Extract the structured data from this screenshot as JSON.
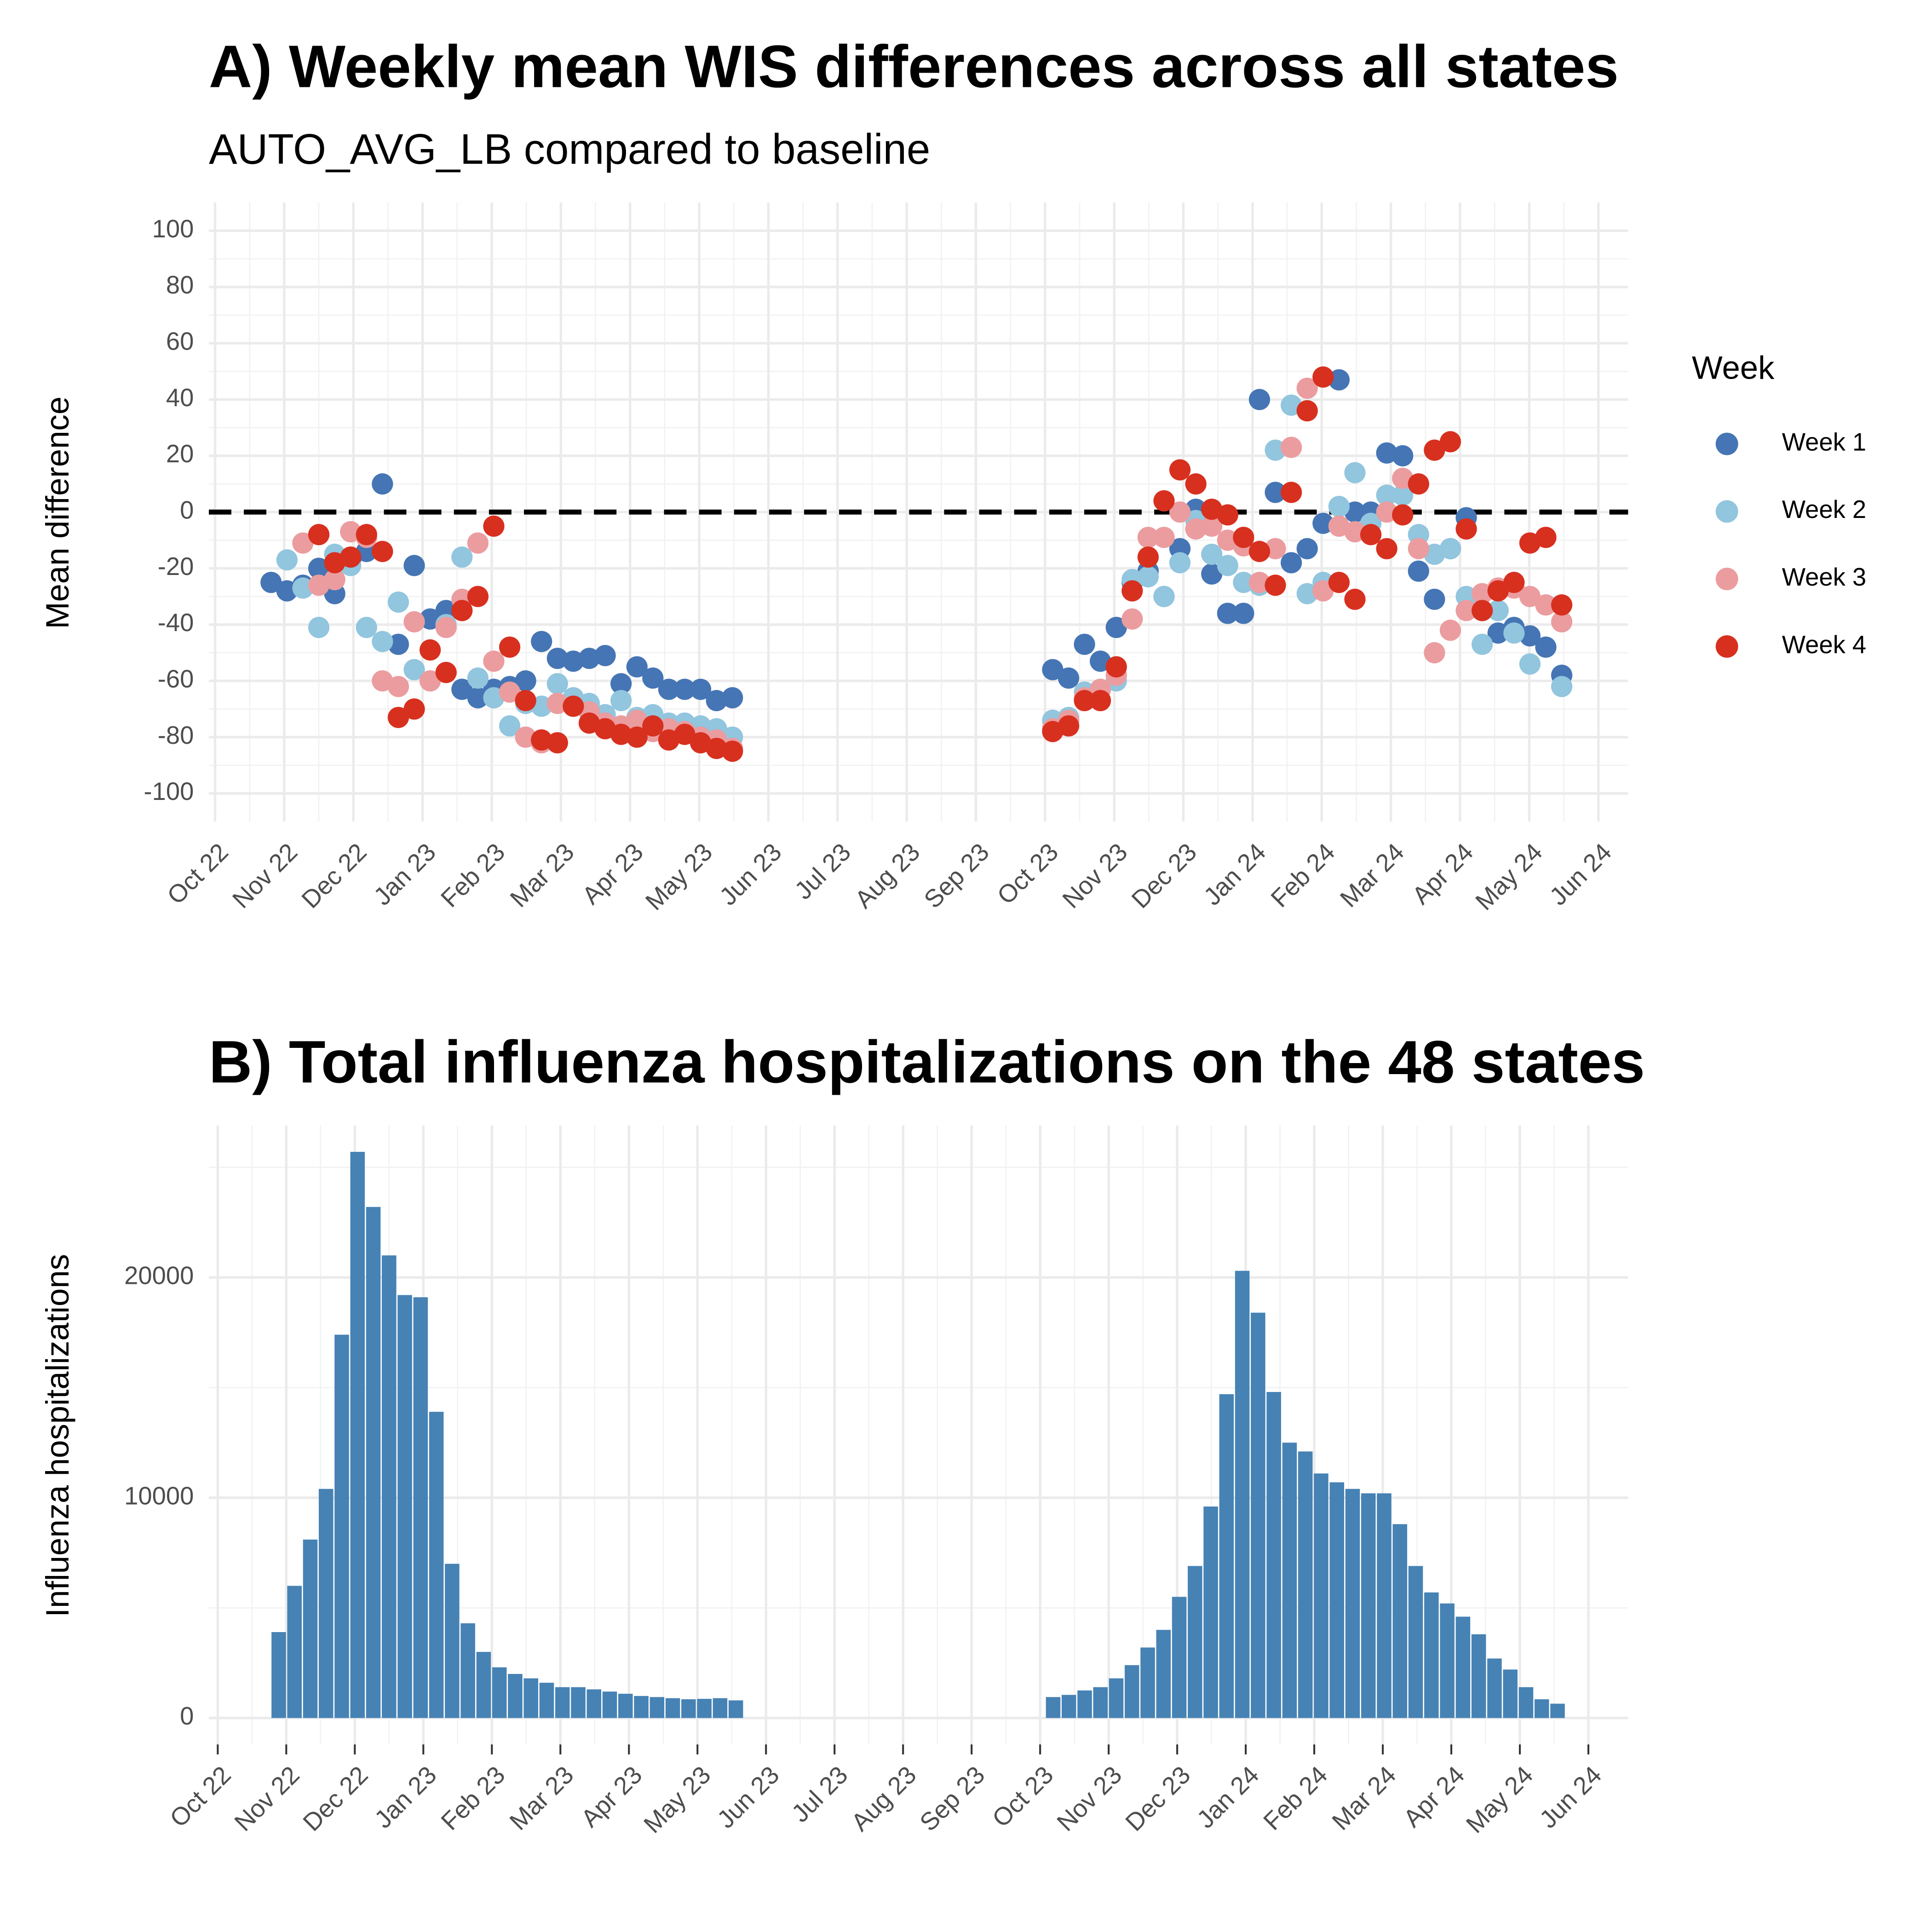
{
  "chart_data": [
    {
      "type": "scatter",
      "title": "A) Weekly mean WIS differences across all states",
      "subtitle": "AUTO_AVG_LB compared to baseline",
      "y_label": "Mean difference",
      "legend_title": "Week",
      "legend": "right",
      "grid": true,
      "hline": 0,
      "xlim": [
        -0.09,
        20.43
      ],
      "xticks": [
        {
          "value": 0,
          "label": "Oct 22"
        },
        {
          "value": 1,
          "label": "Nov 22"
        },
        {
          "value": 2,
          "label": "Dec 22"
        },
        {
          "value": 3,
          "label": "Jan 23"
        },
        {
          "value": 4,
          "label": "Feb 23"
        },
        {
          "value": 5,
          "label": "Mar 23"
        },
        {
          "value": 6,
          "label": "Apr 23"
        },
        {
          "value": 7,
          "label": "May 23"
        },
        {
          "value": 8,
          "label": "Jun 23"
        },
        {
          "value": 9,
          "label": "Jul 23"
        },
        {
          "value": 10,
          "label": "Aug 23"
        },
        {
          "value": 11,
          "label": "Sep 23"
        },
        {
          "value": 12,
          "label": "Oct 23"
        },
        {
          "value": 13,
          "label": "Nov 23"
        },
        {
          "value": 14,
          "label": "Dec 23"
        },
        {
          "value": 15,
          "label": "Jan 24"
        },
        {
          "value": 16,
          "label": "Feb 24"
        },
        {
          "value": 17,
          "label": "Mar 24"
        },
        {
          "value": 18,
          "label": "Apr 24"
        },
        {
          "value": 19,
          "label": "May 24"
        },
        {
          "value": 20,
          "label": "Jun 24"
        }
      ],
      "ylim": [
        -110,
        110
      ],
      "yticks": [
        -100,
        -80,
        -60,
        -40,
        -20,
        0,
        20,
        40,
        60,
        80,
        100
      ],
      "yminor": [
        -90,
        -70,
        -50,
        -30,
        -10,
        10,
        30,
        50,
        70,
        90
      ],
      "x": [
        0.81,
        1.04,
        1.27,
        1.5,
        1.73,
        1.96,
        2.19,
        2.42,
        2.65,
        2.88,
        3.11,
        3.34,
        3.57,
        3.8,
        4.03,
        4.26,
        4.49,
        4.72,
        4.95,
        5.18,
        5.41,
        5.64,
        5.87,
        6.1,
        6.33,
        6.56,
        6.79,
        7.02,
        7.25,
        7.48,
        12.11,
        12.34,
        12.57,
        12.8,
        13.03,
        13.26,
        13.49,
        13.72,
        13.95,
        14.18,
        14.41,
        14.64,
        14.87,
        15.1,
        15.33,
        15.56,
        15.79,
        16.02,
        16.25,
        16.48,
        16.71,
        16.94,
        17.17,
        17.4,
        17.63,
        17.86,
        18.09,
        18.32,
        18.55,
        18.78,
        19.01,
        19.24,
        19.47
      ],
      "series": [
        {
          "name": "Week 1",
          "color": "#4575b4",
          "values": [
            -25,
            -28,
            -26,
            -20,
            -29,
            -17,
            -14,
            10,
            -47,
            -19,
            -38,
            -35,
            -63,
            -66,
            -63,
            -62,
            -60,
            -46,
            -52,
            -53,
            -52,
            -51,
            -61,
            -55,
            -59,
            -63,
            -63,
            -63,
            -67,
            -66,
            -56,
            -59,
            -47,
            -53,
            -41,
            -25,
            -21,
            -30,
            -13,
            1,
            -22,
            -36,
            -36,
            40,
            7,
            -18,
            -13,
            -4,
            47,
            0,
            0,
            21,
            20,
            -21,
            -31,
            -13,
            -2,
            -35,
            -43,
            -41,
            -44,
            -48,
            -58
          ]
        },
        {
          "name": "Week 2",
          "color": "#92c5de",
          "values": [
            null,
            -17,
            -27,
            -41,
            -15,
            -19,
            -41,
            -46,
            -32,
            -56,
            -60,
            -40,
            -16,
            -59,
            -66,
            -76,
            -68,
            -69,
            -61,
            -66,
            -68,
            -72,
            -67,
            -73,
            -72,
            -75,
            -75,
            -76,
            -77,
            -80,
            -74,
            -73,
            -64,
            -63,
            -60,
            -24,
            -23,
            -30,
            -18,
            -3,
            -15,
            -19,
            -25,
            -26,
            22,
            38,
            -29,
            -25,
            2,
            14,
            -4,
            6,
            6,
            -8,
            -15,
            -13,
            -30,
            -47,
            -35,
            -43,
            -54,
            -33,
            -62
          ]
        },
        {
          "name": "Week 3",
          "color": "#eb9c9f",
          "values": [
            null,
            null,
            -11,
            -26,
            -24,
            -7,
            -9,
            -60,
            -62,
            -39,
            -60,
            -41,
            -31,
            -11,
            -53,
            -64,
            -80,
            -82,
            -68,
            -69,
            -71,
            -75,
            -76,
            -74,
            -78,
            -77,
            -78,
            -80,
            -81,
            -84,
            -77,
            -74,
            -66,
            -63,
            -58,
            -38,
            -9,
            -9,
            0,
            -6,
            -5,
            -10,
            -12,
            -25,
            -13,
            23,
            44,
            -28,
            -5,
            -7,
            -8,
            0,
            12,
            -13,
            -50,
            -42,
            -35,
            -29,
            -27,
            -27,
            -30,
            -33,
            -39
          ]
        },
        {
          "name": "Week 4",
          "color": "#d7301f",
          "values": [
            null,
            null,
            null,
            -8,
            -18,
            -16,
            -8,
            -14,
            -73,
            -70,
            -49,
            -57,
            -35,
            -30,
            -5,
            -48,
            -67,
            -81,
            -82,
            -69,
            -75,
            -77,
            -79,
            -80,
            -76,
            -81,
            -79,
            -82,
            -84,
            -85,
            -78,
            -76,
            -67,
            -67,
            -55,
            -28,
            -16,
            4,
            15,
            10,
            1,
            -1,
            -9,
            -14,
            -26,
            7,
            36,
            48,
            -25,
            -31,
            -8,
            -13,
            -1,
            10,
            22,
            25,
            -6,
            -35,
            -28,
            -25,
            -11,
            -9,
            -33
          ]
        }
      ]
    },
    {
      "type": "bar",
      "title": "B) Total influenza hospitalizations on the 48 states",
      "y_label": "Influenza hospitalizations",
      "grid": true,
      "color": "#4682b4",
      "xlim": [
        -0.13,
        20.58
      ],
      "xticks": [
        {
          "value": 0,
          "label": "Oct 22"
        },
        {
          "value": 1,
          "label": "Nov 22"
        },
        {
          "value": 2,
          "label": "Dec 22"
        },
        {
          "value": 3,
          "label": "Jan 23"
        },
        {
          "value": 4,
          "label": "Feb 23"
        },
        {
          "value": 5,
          "label": "Mar 23"
        },
        {
          "value": 6,
          "label": "Apr 23"
        },
        {
          "value": 7,
          "label": "May 23"
        },
        {
          "value": 8,
          "label": "Jun 23"
        },
        {
          "value": 9,
          "label": "Jul 23"
        },
        {
          "value": 10,
          "label": "Aug 23"
        },
        {
          "value": 11,
          "label": "Sep 23"
        },
        {
          "value": 12,
          "label": "Oct 23"
        },
        {
          "value": 13,
          "label": "Nov 23"
        },
        {
          "value": 14,
          "label": "Dec 23"
        },
        {
          "value": 15,
          "label": "Jan 24"
        },
        {
          "value": 16,
          "label": "Feb 24"
        },
        {
          "value": 17,
          "label": "Mar 24"
        },
        {
          "value": 18,
          "label": "Apr 24"
        },
        {
          "value": 19,
          "label": "May 24"
        },
        {
          "value": 20,
          "label": "Jun 24"
        }
      ],
      "ylim": [
        -1200,
        26900
      ],
      "yticks": [
        0,
        10000,
        20000
      ],
      "yminor": [
        5000,
        15000,
        25000
      ],
      "x": [
        0.89,
        1.12,
        1.35,
        1.58,
        1.81,
        2.04,
        2.27,
        2.5,
        2.73,
        2.96,
        3.19,
        3.42,
        3.65,
        3.88,
        4.11,
        4.34,
        4.57,
        4.8,
        5.03,
        5.26,
        5.49,
        5.72,
        5.95,
        6.18,
        6.41,
        6.64,
        6.87,
        7.1,
        7.33,
        7.56,
        12.19,
        12.42,
        12.65,
        12.88,
        13.11,
        13.34,
        13.57,
        13.8,
        14.03,
        14.26,
        14.49,
        14.72,
        14.95,
        15.18,
        15.41,
        15.64,
        15.87,
        16.1,
        16.33,
        16.56,
        16.79,
        17.02,
        17.25,
        17.48,
        17.71,
        17.94,
        18.17,
        18.4,
        18.63,
        18.86,
        19.09,
        19.32,
        19.55
      ],
      "values": [
        3900,
        6000,
        8100,
        10400,
        17400,
        25700,
        23200,
        21000,
        19200,
        19100,
        13900,
        7000,
        4300,
        3000,
        2300,
        2000,
        1800,
        1600,
        1400,
        1400,
        1300,
        1200,
        1100,
        1000,
        950,
        900,
        850,
        870,
        900,
        800,
        950,
        1050,
        1250,
        1400,
        1800,
        2400,
        3200,
        4000,
        5500,
        6900,
        9600,
        14700,
        20300,
        18400,
        14800,
        12500,
        12100,
        11100,
        10700,
        10400,
        10200,
        10200,
        8800,
        6900,
        5700,
        5200,
        4600,
        3800,
        2700,
        2200,
        1400,
        850,
        650
      ]
    }
  ]
}
